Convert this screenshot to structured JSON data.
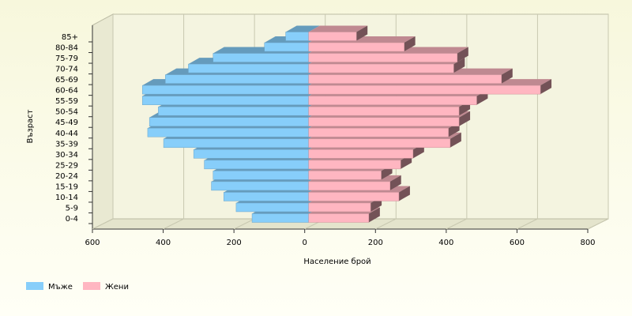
{
  "chart_data": {
    "type": "bar",
    "x_label": "Население брой",
    "y_label": "Възраст",
    "categories": [
      "0-4",
      "5-9",
      "10-14",
      "15-19",
      "20-24",
      "25-29",
      "30-34",
      "35-39",
      "40-44",
      "45-49",
      "50-54",
      "55-59",
      "60-64",
      "65-69",
      "70-74",
      "75-79",
      "80-84",
      "85+"
    ],
    "series": [
      {
        "name": "Мъже",
        "color": "#87cefa",
        "values": [
          -160,
          -205,
          -240,
          -275,
          -270,
          -295,
          -325,
          -410,
          -455,
          -450,
          -425,
          -470,
          -470,
          -405,
          -340,
          -270,
          -125,
          -65
        ]
      },
      {
        "name": "Жени",
        "color": "#ffb6c1",
        "values": [
          170,
          175,
          255,
          230,
          205,
          260,
          295,
          400,
          395,
          425,
          425,
          475,
          655,
          545,
          410,
          420,
          270,
          135
        ]
      }
    ],
    "xlim": [
      -600,
      800
    ],
    "xticks": [
      {
        "value": -600,
        "label": "600"
      },
      {
        "value": -400,
        "label": "400"
      },
      {
        "value": -200,
        "label": "200"
      },
      0,
      200,
      400,
      600,
      800
    ],
    "grid": true,
    "legend": "bottom-left"
  }
}
